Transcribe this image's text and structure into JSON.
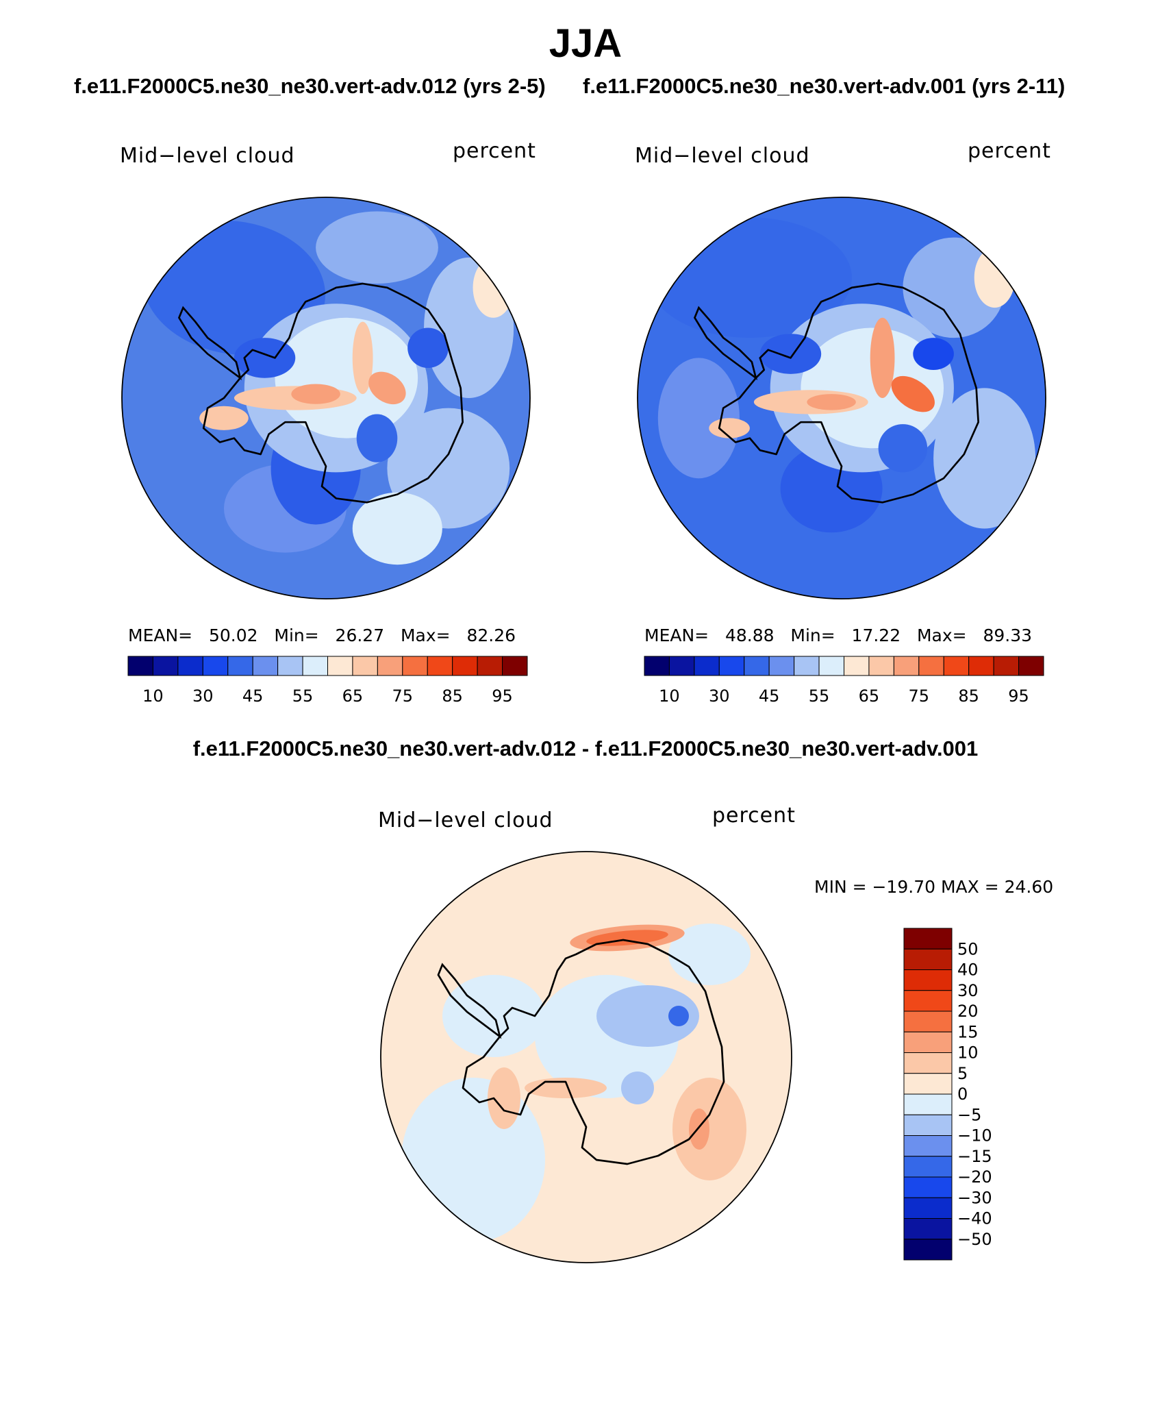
{
  "figure": {
    "title": "JJA",
    "case_a": "f.e11.F2000C5.ne30_ne30.vert-adv.012 (yrs 2-5)",
    "case_b": "f.e11.F2000C5.ne30_ne30.vert-adv.001 (yrs 2-11)",
    "diff_title": "f.e11.F2000C5.ne30_ne30.vert-adv.012 - f.e11.F2000C5.ne30_ne30.vert-adv.001"
  },
  "panels": [
    {
      "variable": "Mid−level cloud",
      "units": "percent",
      "mean_label": "MEAN=",
      "mean": "50.02",
      "min_label": "Min=",
      "min": "26.27",
      "max_label": "Max=",
      "max": "82.26"
    },
    {
      "variable": "Mid−level cloud",
      "units": "percent",
      "mean_label": "MEAN=",
      "mean": "48.88",
      "min_label": "Min=",
      "min": "17.22",
      "max_label": "Max=",
      "max": "89.33"
    }
  ],
  "diff_panel": {
    "variable": "Mid−level cloud",
    "units": "percent",
    "minmax_text": "MIN = −19.70 MAX =   24.60"
  },
  "colorbar_abs": {
    "colors": [
      "#02006e",
      "#0a14a0",
      "#0b2ccc",
      "#1848ec",
      "#3568e8",
      "#6b90ee",
      "#a8c4f4",
      "#dceefb",
      "#fde8d4",
      "#fbc8a8",
      "#f8a07a",
      "#f57040",
      "#f04818",
      "#de2c06",
      "#b81c04",
      "#7e0000"
    ],
    "tick_labels": [
      "10",
      "30",
      "45",
      "55",
      "65",
      "75",
      "85",
      "95"
    ]
  },
  "colorbar_diff": {
    "colors": [
      "#02006e",
      "#0a14a0",
      "#0b2ccc",
      "#1848ec",
      "#3568e8",
      "#6b90ee",
      "#a8c4f4",
      "#dceefb",
      "#fde8d4",
      "#fbc8a8",
      "#f8a07a",
      "#f57040",
      "#f04818",
      "#de2c06",
      "#b81c04",
      "#7e0000"
    ],
    "tick_labels": [
      "50",
      "40",
      "30",
      "20",
      "15",
      "10",
      "5",
      "0",
      "−5",
      "−10",
      "−15",
      "−20",
      "−30",
      "−40",
      "−50"
    ]
  },
  "fields": {
    "panel_a": {
      "base": "#4f7fe6",
      "blobs": [
        {
          "u": -0.45,
          "v": -0.55,
          "rx": 0.45,
          "ry": 0.33,
          "rot": 10,
          "color": "#3568e8"
        },
        {
          "u": 0.25,
          "v": -0.75,
          "rx": 0.3,
          "ry": 0.18,
          "rot": 0,
          "color": "#8fb0f1"
        },
        {
          "u": 0.7,
          "v": -0.35,
          "rx": 0.22,
          "ry": 0.35,
          "rot": 0,
          "color": "#a8c4f4"
        },
        {
          "u": 0.82,
          "v": -0.55,
          "rx": 0.1,
          "ry": 0.15,
          "rot": 0,
          "color": "#fde8d4"
        },
        {
          "u": 0.6,
          "v": 0.35,
          "rx": 0.3,
          "ry": 0.3,
          "rot": 0,
          "color": "#a8c4f4"
        },
        {
          "u": 0.35,
          "v": 0.65,
          "rx": 0.22,
          "ry": 0.18,
          "rot": 0,
          "color": "#dceefb"
        },
        {
          "u": -0.2,
          "v": 0.55,
          "rx": 0.3,
          "ry": 0.22,
          "rot": 0,
          "color": "#6b90ee"
        },
        {
          "u": -0.05,
          "v": 0.35,
          "rx": 0.22,
          "ry": 0.28,
          "rot": 0,
          "color": "#2c5ce8"
        },
        {
          "u": 0.05,
          "v": -0.05,
          "rx": 0.45,
          "ry": 0.42,
          "rot": 0,
          "color": "#a8c4f4"
        },
        {
          "u": 0.1,
          "v": -0.1,
          "rx": 0.35,
          "ry": 0.3,
          "rot": 0,
          "color": "#dceefb"
        },
        {
          "u": -0.3,
          "v": -0.2,
          "rx": 0.15,
          "ry": 0.1,
          "rot": 0,
          "color": "#2c5ce8"
        },
        {
          "u": 0.5,
          "v": -0.25,
          "rx": 0.1,
          "ry": 0.1,
          "rot": 0,
          "color": "#2c5ce8"
        },
        {
          "u": 0.25,
          "v": 0.2,
          "rx": 0.1,
          "ry": 0.12,
          "rot": 0,
          "color": "#3568e8"
        },
        {
          "u": -0.15,
          "v": 0.0,
          "rx": 0.3,
          "ry": 0.06,
          "rot": 0,
          "color": "#fbc8a8"
        },
        {
          "u": 0.18,
          "v": -0.2,
          "rx": 0.05,
          "ry": 0.18,
          "rot": 0,
          "color": "#fbc8a8"
        },
        {
          "u": 0.3,
          "v": -0.05,
          "rx": 0.1,
          "ry": 0.07,
          "rot": 35,
          "color": "#f8a07a"
        },
        {
          "u": -0.05,
          "v": -0.02,
          "rx": 0.12,
          "ry": 0.05,
          "rot": 0,
          "color": "#f8a07a"
        },
        {
          "u": -0.5,
          "v": 0.1,
          "rx": 0.12,
          "ry": 0.06,
          "rot": 0,
          "color": "#fbc8a8"
        }
      ]
    },
    "panel_b": {
      "base": "#3a6ee8",
      "blobs": [
        {
          "u": -0.45,
          "v": -0.6,
          "rx": 0.5,
          "ry": 0.3,
          "rot": 0,
          "color": "#3568e8"
        },
        {
          "u": 0.55,
          "v": -0.55,
          "rx": 0.25,
          "ry": 0.25,
          "rot": 0,
          "color": "#8fb0f1"
        },
        {
          "u": 0.75,
          "v": -0.6,
          "rx": 0.1,
          "ry": 0.15,
          "rot": 0,
          "color": "#fde8d4"
        },
        {
          "u": 0.7,
          "v": 0.3,
          "rx": 0.25,
          "ry": 0.35,
          "rot": 0,
          "color": "#a8c4f4"
        },
        {
          "u": -0.7,
          "v": 0.1,
          "rx": 0.2,
          "ry": 0.3,
          "rot": 0,
          "color": "#6b90ee"
        },
        {
          "u": -0.05,
          "v": 0.45,
          "rx": 0.25,
          "ry": 0.22,
          "rot": 0,
          "color": "#2c5ce8"
        },
        {
          "u": 0.1,
          "v": -0.05,
          "rx": 0.45,
          "ry": 0.42,
          "rot": 0,
          "color": "#a8c4f4"
        },
        {
          "u": 0.15,
          "v": -0.05,
          "rx": 0.35,
          "ry": 0.3,
          "rot": 0,
          "color": "#dceefb"
        },
        {
          "u": -0.25,
          "v": -0.22,
          "rx": 0.15,
          "ry": 0.1,
          "rot": 0,
          "color": "#2c5ce8"
        },
        {
          "u": 0.45,
          "v": -0.22,
          "rx": 0.1,
          "ry": 0.08,
          "rot": 0,
          "color": "#1848ec"
        },
        {
          "u": 0.3,
          "v": 0.25,
          "rx": 0.12,
          "ry": 0.12,
          "rot": 0,
          "color": "#3568e8"
        },
        {
          "u": -0.15,
          "v": 0.02,
          "rx": 0.28,
          "ry": 0.06,
          "rot": 0,
          "color": "#fbc8a8"
        },
        {
          "u": 0.2,
          "v": -0.2,
          "rx": 0.06,
          "ry": 0.2,
          "rot": 0,
          "color": "#f8a07a"
        },
        {
          "u": 0.35,
          "v": -0.02,
          "rx": 0.12,
          "ry": 0.07,
          "rot": 35,
          "color": "#f57040"
        },
        {
          "u": -0.05,
          "v": 0.02,
          "rx": 0.12,
          "ry": 0.04,
          "rot": 0,
          "color": "#f8a07a"
        },
        {
          "u": -0.55,
          "v": 0.15,
          "rx": 0.1,
          "ry": 0.05,
          "rot": 0,
          "color": "#fbc8a8"
        }
      ]
    },
    "panel_diff": {
      "base": "#fde8d4",
      "blobs": [
        {
          "u": -0.55,
          "v": 0.5,
          "rx": 0.35,
          "ry": 0.4,
          "rot": 0,
          "color": "#dceefb"
        },
        {
          "u": -0.45,
          "v": -0.2,
          "rx": 0.25,
          "ry": 0.2,
          "rot": 0,
          "color": "#dceefb"
        },
        {
          "u": 0.6,
          "v": -0.5,
          "rx": 0.2,
          "ry": 0.15,
          "rot": 0,
          "color": "#dceefb"
        },
        {
          "u": 0.1,
          "v": -0.1,
          "rx": 0.35,
          "ry": 0.3,
          "rot": 0,
          "color": "#dceefb"
        },
        {
          "u": 0.3,
          "v": -0.2,
          "rx": 0.25,
          "ry": 0.15,
          "rot": 0,
          "color": "#a8c4f4"
        },
        {
          "u": 0.45,
          "v": -0.2,
          "rx": 0.05,
          "ry": 0.05,
          "rot": 0,
          "color": "#3568e8"
        },
        {
          "u": 0.2,
          "v": -0.58,
          "rx": 0.28,
          "ry": 0.06,
          "rot": -5,
          "color": "#f8a07a"
        },
        {
          "u": 0.2,
          "v": -0.58,
          "rx": 0.2,
          "ry": 0.035,
          "rot": -5,
          "color": "#f57040"
        },
        {
          "u": 0.6,
          "v": 0.35,
          "rx": 0.18,
          "ry": 0.25,
          "rot": 0,
          "color": "#fbc8a8"
        },
        {
          "u": 0.55,
          "v": 0.35,
          "rx": 0.05,
          "ry": 0.1,
          "rot": 0,
          "color": "#f8a07a"
        },
        {
          "u": -0.1,
          "v": 0.15,
          "rx": 0.2,
          "ry": 0.05,
          "rot": 0,
          "color": "#fbc8a8"
        },
        {
          "u": -0.4,
          "v": 0.2,
          "rx": 0.08,
          "ry": 0.15,
          "rot": 0,
          "color": "#fbc8a8"
        },
        {
          "u": 0.25,
          "v": 0.15,
          "rx": 0.08,
          "ry": 0.08,
          "rot": 0,
          "color": "#a8c4f4"
        }
      ]
    }
  }
}
